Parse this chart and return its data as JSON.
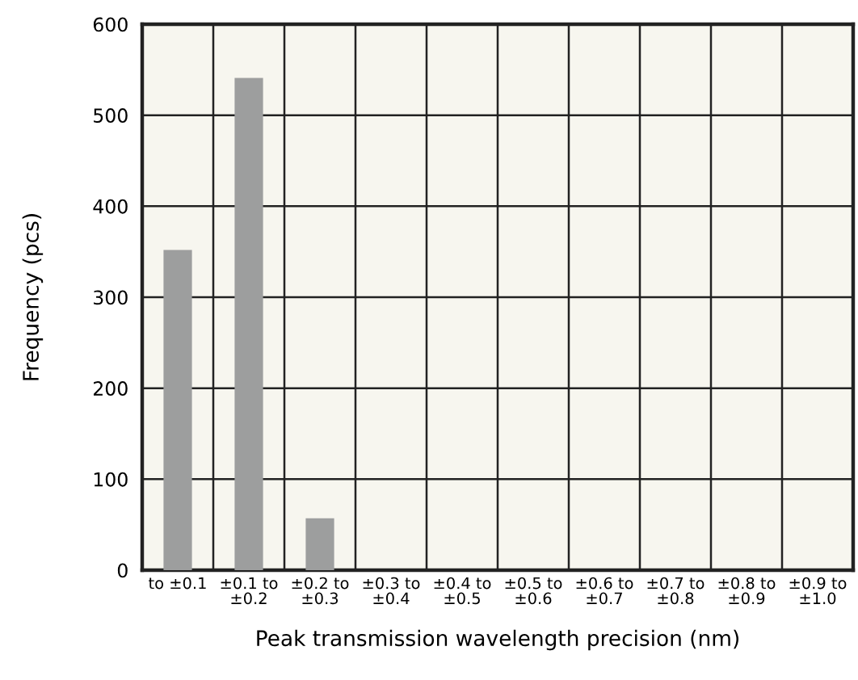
{
  "chart_data": {
    "type": "bar",
    "xlabel": "Peak transmission wavelength precision (nm)",
    "ylabel": "Frequency (pcs)",
    "categories": [
      "to ±0.1",
      "±0.1 to\n±0.2",
      "±0.2 to\n±0.3",
      "±0.3 to\n±0.4",
      "±0.4 to\n±0.5",
      "±0.5 to\n±0.6",
      "±0.6 to\n±0.7",
      "±0.7 to\n±0.8",
      "±0.8 to\n±0.9",
      "±0.9 to\n±1.0"
    ],
    "values": [
      352,
      541,
      57,
      0,
      0,
      0,
      0,
      0,
      0,
      0
    ],
    "color": "#9d9e9e",
    "ylim": [
      0,
      600
    ],
    "yticks": [
      0,
      100,
      200,
      300,
      400,
      500,
      600
    ],
    "grid": true
  }
}
